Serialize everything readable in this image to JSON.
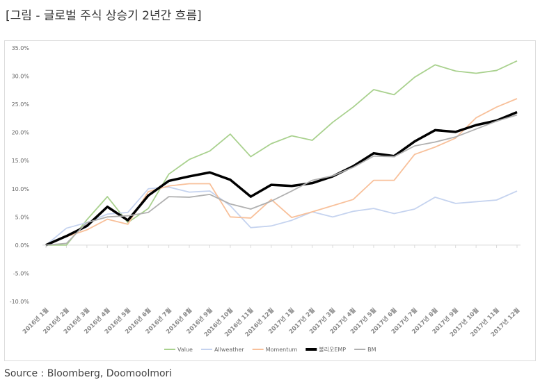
{
  "title": "[그림 - 글로벌 주식 상승기 2년간 흐름]",
  "source": "Source : Bloomberg, Doomoolmori",
  "chart_data": {
    "type": "line",
    "title": "",
    "xlabel": "",
    "ylabel": "",
    "ylim": [
      -10,
      35
    ],
    "yticks": [
      35,
      30,
      25,
      20,
      15,
      10,
      5,
      0,
      -5,
      -10
    ],
    "ytick_labels": [
      "35.0%",
      "30.0%",
      "25.0%",
      "20.0%",
      "15.0%",
      "10.0%",
      "5.0%",
      "0.0%",
      "-5.0%",
      "-10.0%"
    ],
    "grid": false,
    "legend": "bottom",
    "categories": [
      "2016년 1월",
      "2016년 2월",
      "2016년 3월",
      "2016년 4월",
      "2016년 5월",
      "2016년 6월",
      "2016년 7월",
      "2016년 8월",
      "2016년 9월",
      "2016년 10월",
      "2016년 11월",
      "2016년 12월",
      "2017년 1월",
      "2017년 2월",
      "2017년 3월",
      "2017년 4월",
      "2017년 5월",
      "2017년 6월",
      "2017년 7월",
      "2017년 8월",
      "2017년 9월",
      "2017년 10월",
      "2017년 11월",
      "2017년 12월"
    ],
    "series": [
      {
        "name": "Value",
        "color": "#a9d18e",
        "values": [
          0,
          0,
          4.5,
          8.6,
          4,
          6.5,
          12.6,
          15.2,
          16.7,
          19.7,
          15.7,
          18,
          19.4,
          18.6,
          21.8,
          24.5,
          27.6,
          26.7,
          29.8,
          32,
          30.9,
          30.5,
          31,
          32.7
        ]
      },
      {
        "name": "Allweather",
        "color": "#c5d3ef",
        "values": [
          0,
          3,
          4,
          5.5,
          5.8,
          10,
          10.3,
          9.4,
          9.6,
          7,
          3.1,
          3.4,
          4.4,
          5.9,
          5,
          6,
          6.5,
          5.6,
          6.4,
          8.5,
          7.4,
          7.7,
          8,
          9.6
        ]
      },
      {
        "name": "Momentum",
        "color": "#f8c09a",
        "values": [
          0,
          1.5,
          2.7,
          4.6,
          3.7,
          9.5,
          10.5,
          10.9,
          10.9,
          5,
          4.8,
          8.1,
          4.9,
          5.9,
          7,
          8.1,
          11.5,
          11.5,
          16.1,
          17.4,
          19,
          22.6,
          24.5,
          26
        ]
      },
      {
        "name": "불리오EMP",
        "color": "#000000",
        "values": [
          0,
          1.6,
          3.4,
          6.8,
          4.4,
          8.8,
          11.4,
          12.2,
          12.9,
          11.6,
          8.6,
          10.7,
          10.5,
          11,
          12.2,
          14,
          16.3,
          15.8,
          18.4,
          20.4,
          20.1,
          21.3,
          22.1,
          23.6
        ]
      },
      {
        "name": "BM",
        "color": "#b0b0b0",
        "values": [
          0,
          0.3,
          4,
          5,
          5.2,
          5.8,
          8.6,
          8.5,
          9,
          7.3,
          6.4,
          7.8,
          9.6,
          11.5,
          12.3,
          13.8,
          15.8,
          15.7,
          17.6,
          18.3,
          19.2,
          20.6,
          22,
          23.1
        ]
      }
    ]
  }
}
